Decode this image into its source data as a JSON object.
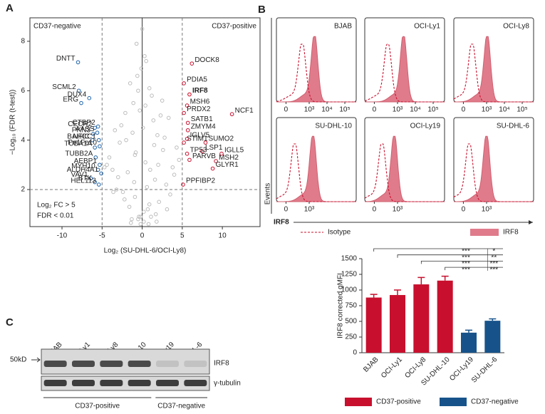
{
  "panel_labels": [
    "A",
    "B",
    "C"
  ],
  "chart_data": [
    {
      "type": "scatter",
      "xlabel": "Log₂ (SU-DHL-6/OCI-Ly8)",
      "ylabel": "−Log₁₀ (FDR (t-test))",
      "xlim": [
        -14,
        14.7
      ],
      "ylim": [
        0.5,
        8.95
      ],
      "xticks": [
        -10,
        -5,
        0,
        5,
        10
      ],
      "yticks": [
        2,
        4,
        6,
        8
      ],
      "thresholds": {
        "x": [
          -5,
          5
        ],
        "y": 2
      },
      "annotations": {
        "left": "CD37-negative",
        "right": "CD37-positive",
        "fc": "Log₂ FC > 5",
        "fdr": "FDR < 0.01"
      },
      "series": [
        {
          "color": "#bdbdbd",
          "x": [
            0.2,
            -0.5,
            1.1,
            -1.3,
            0.7,
            -0.2,
            2.1,
            -2.4,
            1.6,
            -1.8,
            0.4,
            -0.9,
            3.0,
            -3.2,
            2.6,
            -2.8,
            0.1,
            -0.3,
            1.4,
            -1.1,
            0.9,
            -0.6,
            3.8,
            -4.1,
            4.3,
            -3.7,
            1.9,
            -2.0,
            0.5,
            -0.7,
            2.3,
            -2.6,
            1.2,
            -1.5,
            0.0,
            0.3,
            -0.1,
            2.8,
            -3.4,
            4.6,
            -4.4,
            1.7,
            -1.6,
            0.8,
            -0.4,
            3.5,
            -3.0,
            2.0,
            -2.2,
            0.6,
            -1.0,
            1.0,
            -0.8,
            4.0,
            -4.7,
            3.3,
            0.2,
            -0.2,
            1.5,
            -1.2,
            0.4,
            -0.5,
            2.5,
            -2.1,
            0.9,
            -0.9,
            3.1,
            -3.6,
            1.8,
            -1.4
          ],
          "y": [
            0.7,
            0.8,
            0.9,
            0.8,
            1.2,
            0.6,
            1.5,
            1.9,
            2.4,
            2.7,
            3.1,
            3.4,
            2.2,
            2.0,
            3.6,
            3.9,
            4.5,
            5.2,
            4.8,
            5.5,
            6.1,
            6.6,
            2.9,
            3.3,
            3.7,
            2.8,
            4.2,
            4.0,
            7.2,
            7.9,
            5.0,
            4.6,
            5.8,
            6.3,
            8.5,
            7.4,
            6.9,
            4.1,
            4.4,
            3.2,
            3.0,
            1.0,
            1.3,
            0.6,
            0.9,
            1.8,
            2.5,
            3.0,
            1.6,
            2.1,
            2.3,
            2.8,
            3.5,
            2.6,
            2.9,
            4.9,
            1.1,
            0.9,
            3.8,
            4.3,
            5.4,
            6.0,
            5.6,
            5.1,
            1.4,
            1.7,
            1.2,
            1.9,
            0.7,
            0.65
          ]
        },
        {
          "color": "#1f63a8",
          "side": "left",
          "x": [
            -8.0,
            -7.9,
            -6.6,
            -7.6,
            -5.9,
            -5.5,
            -6.1,
            -5.6,
            -6.2,
            -5.4,
            -5.9,
            -5.3,
            -5.8,
            -5.3,
            -5.5,
            -5.1,
            -6.4,
            -5.9,
            -5.4
          ],
          "y": [
            7.15,
            6.0,
            5.7,
            5.5,
            4.5,
            4.55,
            4.25,
            4.3,
            4.0,
            4.0,
            3.7,
            3.75,
            3.3,
            3.0,
            2.8,
            2.65,
            2.45,
            2.3,
            2.2
          ],
          "labels": [
            "DNTT",
            "SCML2",
            "DUX4",
            "ERG",
            "CECR2",
            "CTBP2",
            "PKN3",
            "AASS",
            "NFIC",
            "BAHCC1",
            "TUBA1A",
            "Pe1Fe10",
            "TUBB2A",
            "AEBP1",
            "MYH10",
            "ALDH4A1",
            "VAV1",
            "BTK",
            "HEL113"
          ]
        },
        {
          "color": "#c8102e",
          "side": "right",
          "x": [
            6.2,
            5.2,
            5.6,
            11.2,
            5.2,
            5.7,
            5.7,
            5.6,
            7.9,
            5.2,
            7.5,
            9.9,
            5.6,
            9.2,
            5.9,
            8.8,
            5.1
          ],
          "y": [
            7.1,
            6.3,
            5.4,
            5.05,
            5.1,
            4.7,
            4.4,
            4.05,
            3.9,
            3.9,
            3.55,
            3.45,
            3.45,
            3.15,
            3.2,
            2.85,
            2.2
          ],
          "labels": [
            "DOCK8",
            "PDIA5",
            "MSH6",
            "NCF1",
            "PRDX2",
            "SATB1",
            "ZMYM4",
            "IGLV5",
            "SUMO2",
            "STIM1",
            "LSP1",
            "IGLL5",
            "TP53",
            "MSH2",
            "PARVB",
            "GLYR1",
            "PPFIBP2"
          ]
        },
        {
          "color": "#d0021b",
          "side": "right",
          "bold": true,
          "x": [
            5.9
          ],
          "y": [
            5.85
          ],
          "labels": [
            "IRF8"
          ]
        }
      ]
    },
    {
      "type": "bar",
      "ylabel": "IRF8 corrected gMFI",
      "categories": [
        "BJAB",
        "OCI-Ly1",
        "OCI-Ly8",
        "SU-DHL-10",
        "OCI-Ly19",
        "SU-DHL-6"
      ],
      "values": [
        880,
        920,
        1090,
        1150,
        320,
        510
      ],
      "errors": [
        50,
        80,
        110,
        70,
        40,
        30
      ],
      "bar_group": [
        0,
        0,
        0,
        0,
        1,
        1
      ],
      "groups": [
        {
          "name": "CD37-positive",
          "color": "#c8102e"
        },
        {
          "name": "CD37-negative",
          "color": "#17538a"
        }
      ],
      "ylim": [
        0,
        1500
      ],
      "yticks": [
        0,
        250,
        500,
        750,
        1000,
        1250,
        1500
      ],
      "comparisons": [
        {
          "from": 0,
          "stars": [
            "***",
            "*"
          ]
        },
        {
          "from": 1,
          "stars": [
            "***",
            "**"
          ]
        },
        {
          "from": 2,
          "stars": [
            "***",
            "***"
          ]
        },
        {
          "from": 3,
          "stars": [
            "***",
            "***"
          ]
        }
      ]
    }
  ],
  "flow": {
    "ylabel": "Events",
    "xlabel": "IRF8",
    "legend": [
      "Isotype",
      "IRF8"
    ],
    "panels": [
      {
        "name": "BJAB",
        "isotype_peak": 400,
        "irf8_peak": 2000,
        "xticks": [
          0,
          {
            "value": 1000,
            "label": "10³"
          },
          {
            "value": 10000,
            "label": "10⁴"
          },
          {
            "value": 100000,
            "label": "10⁵"
          }
        ]
      },
      {
        "name": "OCI-Ly1",
        "isotype_peak": 280,
        "irf8_peak": 2200,
        "xticks": [
          0,
          {
            "value": 1000,
            "label": "10³"
          },
          {
            "value": 10000,
            "label": "10⁴"
          },
          {
            "value": 100000,
            "label": "10⁵"
          }
        ]
      },
      {
        "name": "OCI-Ly8",
        "isotype_peak": 140,
        "irf8_peak": 1100,
        "xticks": [
          0,
          {
            "value": 1000,
            "label": "10³"
          },
          {
            "value": 10000,
            "label": "10⁴"
          },
          {
            "value": 100000,
            "label": "10⁵"
          }
        ]
      },
      {
        "name": "SU-DHL-10",
        "isotype_peak": 140,
        "irf8_peak": 1650,
        "xticks": [
          0,
          {
            "value": 1000,
            "label": "10³"
          }
        ]
      },
      {
        "name": "OCI-Ly19",
        "isotype_peak": 120,
        "irf8_peak": 660,
        "xticks": [
          0,
          {
            "value": 1000,
            "label": "10³"
          }
        ]
      },
      {
        "name": "SU-DHL-6",
        "isotype_peak": 85,
        "irf8_peak": 1000,
        "xticks": [
          0,
          {
            "value": 1000,
            "label": "10³"
          }
        ]
      }
    ]
  },
  "blot": {
    "marker": "50kD",
    "lanes": [
      "BJAB",
      "OCI-Ly1",
      "OCI-Ly8",
      "SU-DHL-10",
      "OCI-Ly19",
      "SU-DHL-6"
    ],
    "lane_group": [
      0,
      0,
      0,
      0,
      1,
      1
    ],
    "rows": [
      "IRF8",
      "γ-tubulin"
    ],
    "groups": [
      "CD37-positive",
      "CD37-negative"
    ]
  }
}
